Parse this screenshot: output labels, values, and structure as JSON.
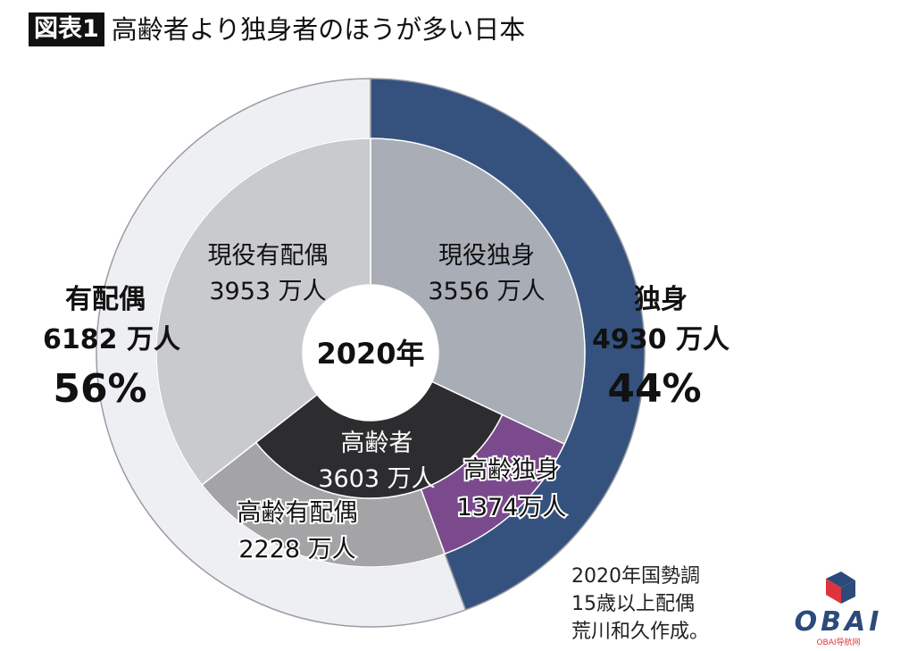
{
  "title": {
    "tag": "図表1",
    "text": "高齢者より独身者のほうが多い日本"
  },
  "chart_data": {
    "type": "pie",
    "subtype": "sunburst-donut",
    "center_label": "2020年",
    "outer_ring": [
      {
        "name": "独身",
        "value": 4930,
        "unit": "万人",
        "percent": "44%",
        "color": "#35527f"
      },
      {
        "name": "有配偶",
        "value": 6182,
        "unit": "万人",
        "percent": "56%",
        "color": "#eeeff2"
      }
    ],
    "inner_ring": [
      {
        "name": "現役独身",
        "value": 3556,
        "unit": "万人",
        "color": "#a9adb6"
      },
      {
        "name": "高齢独身",
        "value": 1374,
        "unit": "万人",
        "color": "#7b4a8d"
      },
      {
        "name": "高齢有配偶",
        "value": 2228,
        "unit": "万人",
        "color": "#a4a4a6"
      },
      {
        "name": "現役有配偶",
        "value": 3953,
        "unit": "万人",
        "color": "#c9cacd"
      }
    ],
    "elderly": {
      "name": "高齢者",
      "value": 3603,
      "unit": "万人",
      "color": "#2d2c2f"
    }
  },
  "labels": {
    "single_outer": {
      "name": "独身",
      "value": "4930 万人",
      "percent": "44%"
    },
    "married_outer": {
      "name": "有配偶",
      "value": "6182 万人",
      "percent": "56%"
    },
    "working_single": {
      "name": "現役独身",
      "value": "3556 万人"
    },
    "working_married": {
      "name": "現役有配偶",
      "value": "3953 万人"
    },
    "elderly": {
      "name": "高齢者",
      "value": "3603 万人"
    },
    "elderly_single": {
      "name": "高齢独身",
      "value": "1374万人"
    },
    "elderly_married": {
      "name": "高齢有配偶",
      "value": "2228 万人"
    }
  },
  "note": [
    "2020年国勢調",
    "15歳以上配偶",
    "荒川和久作成。"
  ],
  "watermark": {
    "logo": "OBAI",
    "sub": "OBAI导航网"
  }
}
